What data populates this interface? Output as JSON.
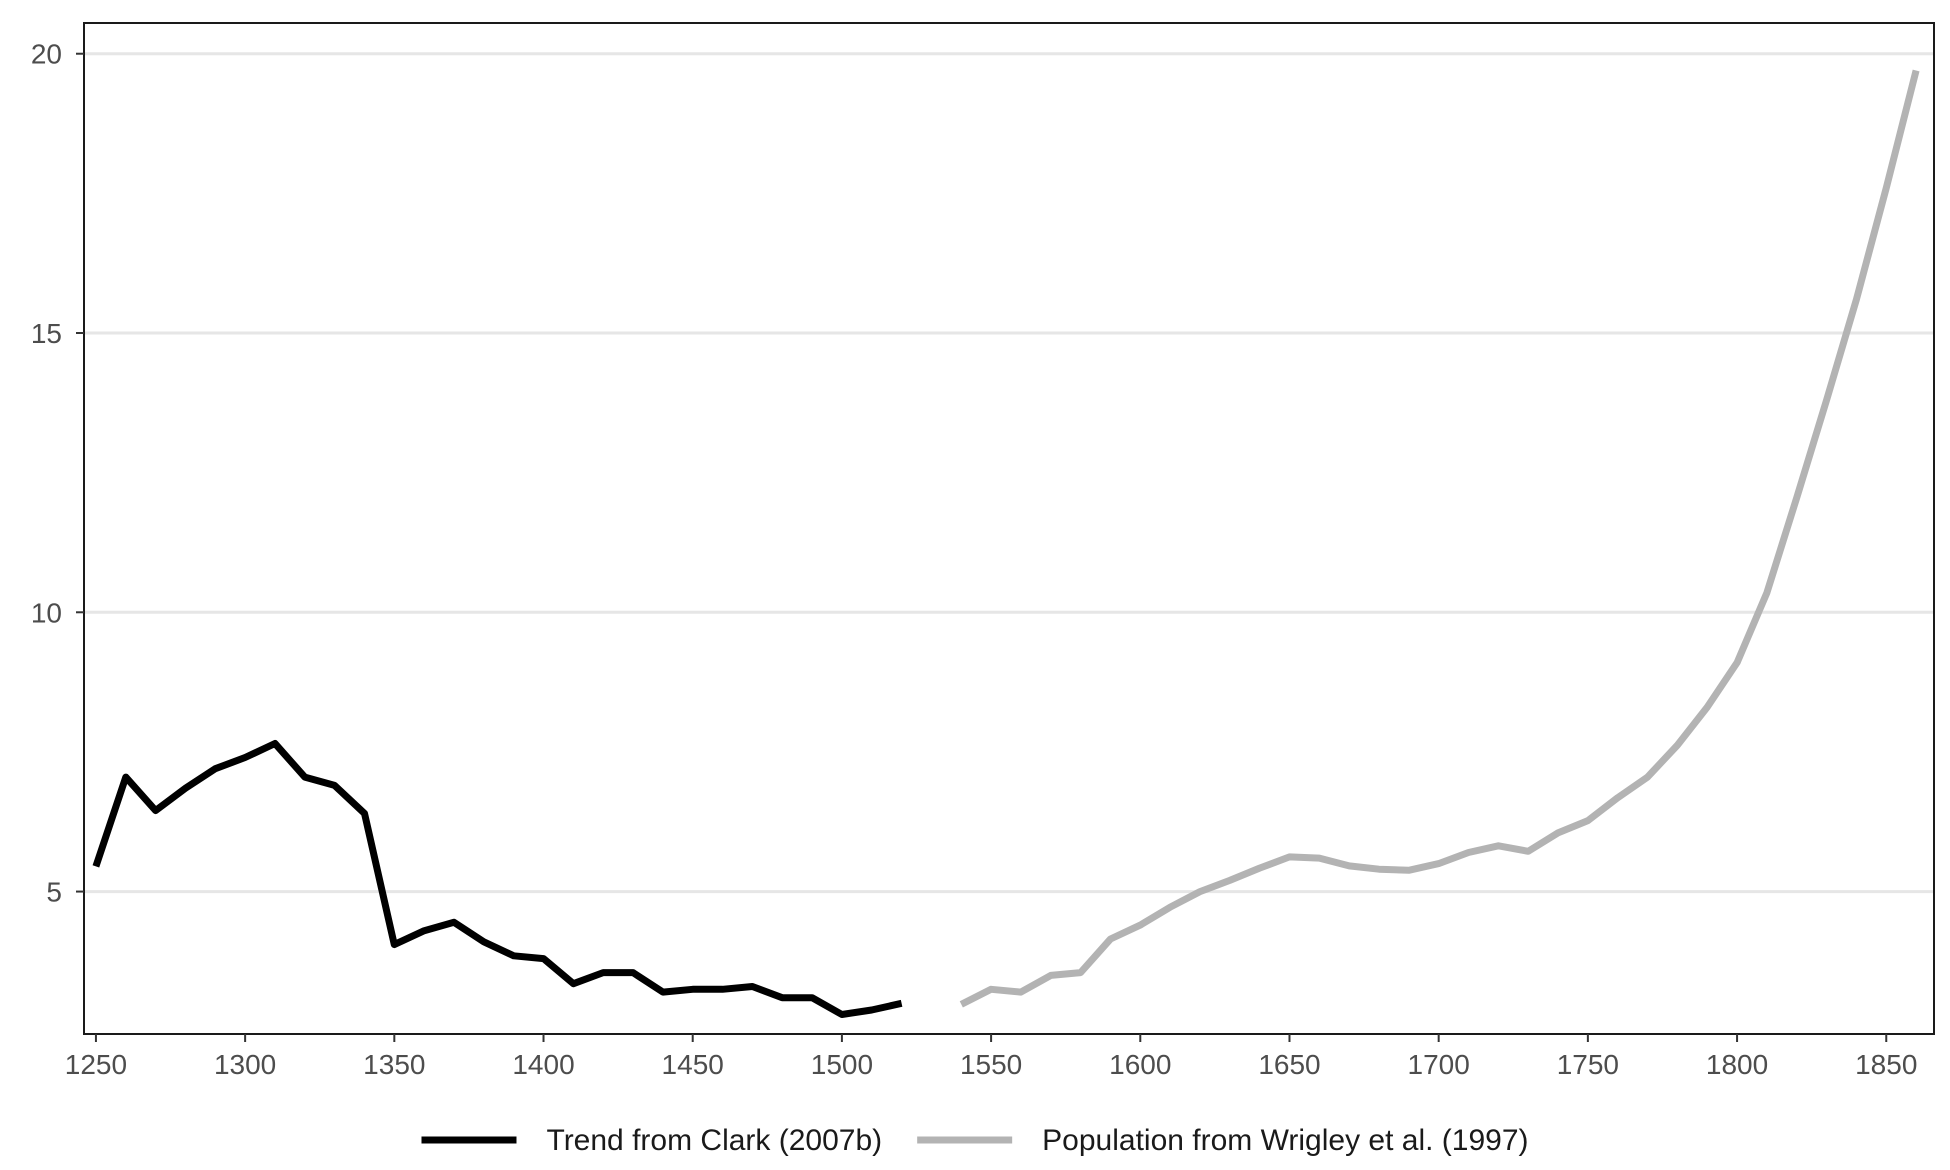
{
  "chart_data": {
    "type": "line",
    "title": "",
    "xlabel": "",
    "ylabel": "",
    "xlim": [
      1246,
      1866
    ],
    "ylim": [
      2.45,
      20.55
    ],
    "x_ticks": [
      1250,
      1300,
      1350,
      1400,
      1450,
      1500,
      1550,
      1600,
      1650,
      1700,
      1750,
      1800,
      1850
    ],
    "y_ticks": [
      5,
      10,
      15,
      20
    ],
    "grid": "horizontal",
    "legend_position": "bottom",
    "series": [
      {
        "name": "Trend from Clark (2007b)",
        "color": "#000000",
        "points": [
          [
            1250,
            5.45
          ],
          [
            1260,
            7.05
          ],
          [
            1270,
            6.45
          ],
          [
            1280,
            6.85
          ],
          [
            1290,
            7.2
          ],
          [
            1300,
            7.4
          ],
          [
            1310,
            7.65
          ],
          [
            1320,
            7.05
          ],
          [
            1330,
            6.9
          ],
          [
            1340,
            6.4
          ],
          [
            1350,
            4.05
          ],
          [
            1360,
            4.3
          ],
          [
            1370,
            4.45
          ],
          [
            1380,
            4.1
          ],
          [
            1390,
            3.85
          ],
          [
            1400,
            3.8
          ],
          [
            1410,
            3.35
          ],
          [
            1420,
            3.55
          ],
          [
            1430,
            3.55
          ],
          [
            1440,
            3.2
          ],
          [
            1450,
            3.25
          ],
          [
            1460,
            3.25
          ],
          [
            1470,
            3.3
          ],
          [
            1480,
            3.1
          ],
          [
            1490,
            3.1
          ],
          [
            1500,
            2.8
          ],
          [
            1510,
            2.88
          ],
          [
            1520,
            3.0
          ]
        ]
      },
      {
        "name": "Population from Wrigley et al. (1997)",
        "color": "#b3b3b3",
        "points": [
          [
            1540,
            2.98
          ],
          [
            1550,
            3.25
          ],
          [
            1560,
            3.2
          ],
          [
            1570,
            3.5
          ],
          [
            1580,
            3.55
          ],
          [
            1590,
            4.15
          ],
          [
            1600,
            4.4
          ],
          [
            1610,
            4.72
          ],
          [
            1620,
            5.0
          ],
          [
            1630,
            5.2
          ],
          [
            1640,
            5.42
          ],
          [
            1650,
            5.62
          ],
          [
            1660,
            5.6
          ],
          [
            1670,
            5.46
          ],
          [
            1680,
            5.4
          ],
          [
            1690,
            5.38
          ],
          [
            1700,
            5.5
          ],
          [
            1710,
            5.7
          ],
          [
            1720,
            5.82
          ],
          [
            1730,
            5.72
          ],
          [
            1740,
            6.05
          ],
          [
            1750,
            6.27
          ],
          [
            1760,
            6.68
          ],
          [
            1770,
            7.05
          ],
          [
            1780,
            7.62
          ],
          [
            1790,
            8.3
          ],
          [
            1800,
            9.1
          ],
          [
            1810,
            10.35
          ],
          [
            1820,
            12.05
          ],
          [
            1830,
            13.8
          ],
          [
            1840,
            15.6
          ],
          [
            1850,
            17.6
          ],
          [
            1860,
            19.7
          ]
        ]
      }
    ]
  }
}
